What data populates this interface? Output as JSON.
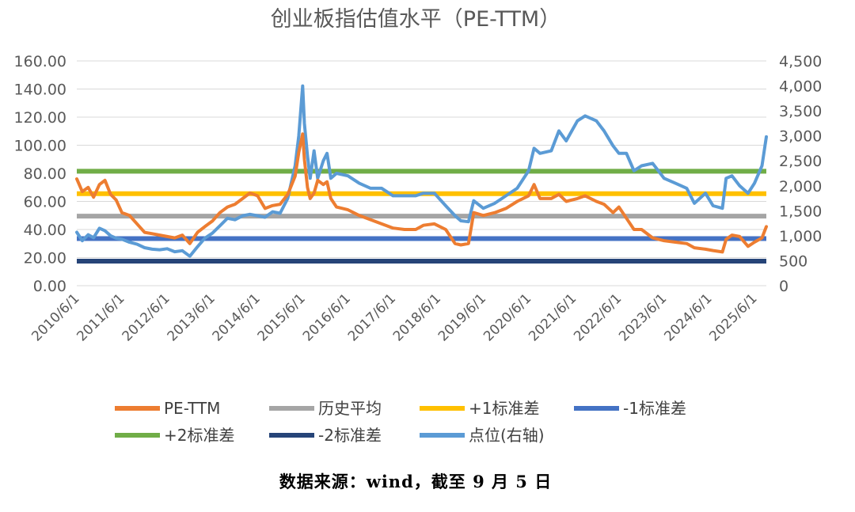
{
  "chart_data": {
    "type": "line",
    "title": "创业板指估值水平（PE-TTM）",
    "left_axis": {
      "min": 0,
      "max": 160,
      "step": 20,
      "tick_labels": [
        "0.00",
        "20.00",
        "40.00",
        "60.00",
        "80.00",
        "100.00",
        "120.00",
        "140.00",
        "160.00"
      ]
    },
    "right_axis": {
      "min": 0,
      "max": 4500,
      "step": 500,
      "tick_labels": [
        "0",
        "500",
        "1,000",
        "1,500",
        "2,000",
        "2,500",
        "3,000",
        "3,500",
        "4,000",
        "4,500"
      ]
    },
    "x_axis": {
      "start": "2010-06-01",
      "end": "2025-09-05",
      "tick_labels": [
        "2010/6/1",
        "2011/6/1",
        "2012/6/1",
        "2013/6/1",
        "2014/6/1",
        "2015/6/1",
        "2016/6/1",
        "2017/6/1",
        "2018/6/1",
        "2019/6/1",
        "2020/6/1",
        "2021/6/1",
        "2022/6/1",
        "2023/6/1",
        "2024/6/1",
        "2025/6/1"
      ]
    },
    "reference_lines": [
      {
        "key": "mean",
        "name": "历史平均",
        "value": 49.5,
        "color": "#a5a5a5"
      },
      {
        "key": "plus1",
        "name": "+1标准差",
        "value": 65.5,
        "color": "#ffc000"
      },
      {
        "key": "minus1",
        "name": "-1标准差",
        "value": 33.5,
        "color": "#4472c4"
      },
      {
        "key": "plus2",
        "name": "+2标准差",
        "value": 81.5,
        "color": "#70ad47"
      },
      {
        "key": "minus2",
        "name": "-2标准差",
        "value": 17.5,
        "color": "#264478"
      }
    ],
    "series": [
      {
        "name": "PE-TTM",
        "axis": "left",
        "color": "#ed7d31",
        "x": [
          "2010-06-01",
          "2010-07-15",
          "2010-09-01",
          "2010-10-15",
          "2010-12-01",
          "2011-01-15",
          "2011-03-01",
          "2011-04-15",
          "2011-06-01",
          "2011-08-01",
          "2011-10-01",
          "2011-12-01",
          "2012-02-01",
          "2012-04-01",
          "2012-06-01",
          "2012-08-01",
          "2012-10-01",
          "2012-12-01",
          "2013-02-01",
          "2013-04-01",
          "2013-06-01",
          "2013-08-01",
          "2013-10-01",
          "2013-12-01",
          "2014-02-01",
          "2014-04-01",
          "2014-06-01",
          "2014-08-01",
          "2014-10-01",
          "2014-12-01",
          "2015-02-01",
          "2015-04-01",
          "2015-05-01",
          "2015-06-01",
          "2015-06-15",
          "2015-07-10",
          "2015-08-01",
          "2015-09-01",
          "2015-10-01",
          "2015-11-15",
          "2015-12-15",
          "2016-01-15",
          "2016-03-01",
          "2016-06-01",
          "2016-09-01",
          "2016-12-01",
          "2017-03-01",
          "2017-06-01",
          "2017-09-01",
          "2017-12-01",
          "2018-02-01",
          "2018-05-01",
          "2018-08-01",
          "2018-10-15",
          "2018-12-01",
          "2019-02-01",
          "2019-03-15",
          "2019-06-01",
          "2019-09-01",
          "2019-12-01",
          "2020-03-01",
          "2020-06-01",
          "2020-07-15",
          "2020-09-01",
          "2020-12-01",
          "2021-02-01",
          "2021-04-01",
          "2021-07-01",
          "2021-09-01",
          "2021-12-01",
          "2022-02-01",
          "2022-04-15",
          "2022-06-01",
          "2022-08-01",
          "2022-10-01",
          "2022-12-01",
          "2023-03-01",
          "2023-06-01",
          "2023-09-01",
          "2023-12-01",
          "2024-02-01",
          "2024-05-01",
          "2024-07-01",
          "2024-09-15",
          "2024-10-15",
          "2024-12-01",
          "2025-02-01",
          "2025-04-10",
          "2025-06-01",
          "2025-08-01",
          "2025-09-05"
        ],
        "values": [
          76,
          67,
          70,
          63,
          72,
          75,
          65,
          61,
          52,
          50,
          44,
          38,
          37,
          36,
          35,
          34,
          36,
          30,
          38,
          42,
          46,
          52,
          56,
          58,
          62,
          66,
          64,
          55,
          57,
          58,
          65,
          78,
          95,
          108,
          90,
          70,
          62,
          66,
          75,
          72,
          74,
          62,
          56,
          54,
          50,
          47,
          44,
          41,
          40,
          40,
          43,
          44,
          40,
          30,
          29,
          30,
          52,
          50,
          52,
          55,
          60,
          64,
          72,
          62,
          62,
          65,
          60,
          62,
          64,
          60,
          58,
          52,
          56,
          48,
          40,
          40,
          34,
          32,
          31,
          30,
          27,
          26,
          25,
          24,
          33,
          36,
          35,
          28,
          31,
          34,
          42
        ]
      },
      {
        "name": "点位(右轴)",
        "axis": "right",
        "color": "#5b9bd5",
        "x": [
          "2010-06-01",
          "2010-07-15",
          "2010-09-01",
          "2010-10-15",
          "2010-12-01",
          "2011-01-15",
          "2011-03-01",
          "2011-04-15",
          "2011-06-01",
          "2011-08-01",
          "2011-10-01",
          "2011-12-01",
          "2012-02-01",
          "2012-04-01",
          "2012-06-01",
          "2012-08-01",
          "2012-10-01",
          "2012-12-01",
          "2013-02-01",
          "2013-04-01",
          "2013-06-01",
          "2013-08-01",
          "2013-10-01",
          "2013-12-01",
          "2014-02-01",
          "2014-04-01",
          "2014-06-01",
          "2014-08-01",
          "2014-10-01",
          "2014-12-01",
          "2015-02-01",
          "2015-04-01",
          "2015-05-01",
          "2015-06-01",
          "2015-06-15",
          "2015-07-10",
          "2015-08-01",
          "2015-09-01",
          "2015-10-01",
          "2015-11-15",
          "2015-12-15",
          "2016-01-15",
          "2016-03-01",
          "2016-06-01",
          "2016-09-01",
          "2016-12-01",
          "2017-03-01",
          "2017-06-01",
          "2017-09-01",
          "2017-12-01",
          "2018-02-01",
          "2018-05-01",
          "2018-08-01",
          "2018-10-15",
          "2018-12-01",
          "2019-02-01",
          "2019-03-15",
          "2019-06-01",
          "2019-09-01",
          "2019-12-01",
          "2020-03-01",
          "2020-06-01",
          "2020-07-15",
          "2020-09-01",
          "2020-12-01",
          "2021-02-01",
          "2021-04-01",
          "2021-07-01",
          "2021-09-01",
          "2021-12-01",
          "2022-02-01",
          "2022-04-15",
          "2022-06-01",
          "2022-08-01",
          "2022-10-01",
          "2022-12-01",
          "2023-03-01",
          "2023-06-01",
          "2023-09-01",
          "2023-12-01",
          "2024-02-01",
          "2024-05-01",
          "2024-07-01",
          "2024-09-15",
          "2024-10-15",
          "2024-12-01",
          "2025-02-01",
          "2025-04-10",
          "2025-06-01",
          "2025-08-01",
          "2025-09-05"
        ],
        "values": [
          1070,
          900,
          1020,
          960,
          1150,
          1100,
          1000,
          950,
          930,
          870,
          830,
          760,
          730,
          720,
          740,
          680,
          700,
          590,
          780,
          950,
          1050,
          1200,
          1350,
          1320,
          1400,
          1430,
          1400,
          1370,
          1480,
          1450,
          1750,
          2400,
          3000,
          4000,
          3250,
          2600,
          2150,
          2700,
          2150,
          2500,
          2650,
          2150,
          2250,
          2200,
          2050,
          1950,
          1950,
          1800,
          1800,
          1800,
          1850,
          1850,
          1600,
          1400,
          1300,
          1280,
          1700,
          1550,
          1650,
          1800,
          1950,
          2300,
          2750,
          2650,
          2700,
          3100,
          2900,
          3300,
          3400,
          3300,
          3100,
          2800,
          2650,
          2650,
          2300,
          2400,
          2450,
          2150,
          2050,
          1950,
          1650,
          1850,
          1600,
          1550,
          2150,
          2200,
          2000,
          1850,
          2050,
          2400,
          2980
        ]
      }
    ]
  },
  "legend": [
    {
      "key": "pe",
      "label": "PE-TTM",
      "color": "#ed7d31"
    },
    {
      "key": "mean",
      "label": "历史平均",
      "color": "#a5a5a5"
    },
    {
      "key": "plus1",
      "label": "+1标准差",
      "color": "#ffc000"
    },
    {
      "key": "minus1",
      "label": "-1标准差",
      "color": "#4472c4"
    },
    {
      "key": "plus2",
      "label": "+2标准差",
      "color": "#70ad47"
    },
    {
      "key": "minus2",
      "label": "-2标准差",
      "color": "#264478"
    },
    {
      "key": "index",
      "label": "点位(右轴)",
      "color": "#5b9bd5"
    }
  ],
  "source_note": "数据来源：wind，截至 9 月 5 日"
}
